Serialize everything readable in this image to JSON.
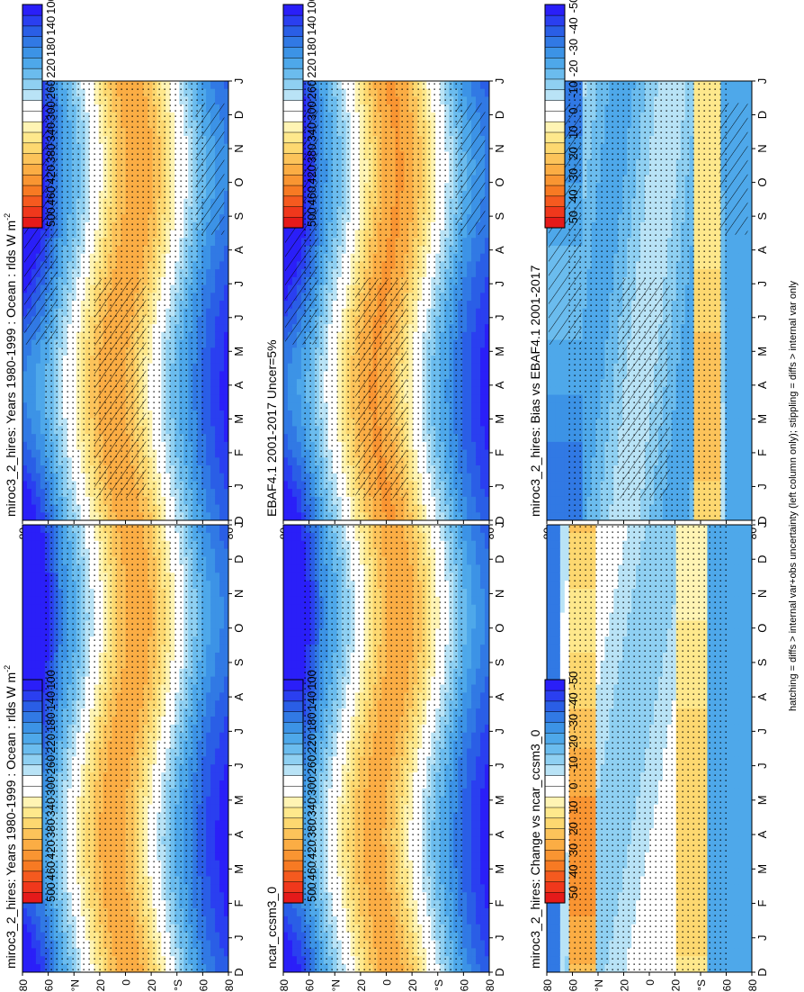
{
  "footnote": "hatching = diffs > internal var+obs uncertainty (left column only); stippling = diffs > internal var only",
  "palettes": {
    "abs": [
      "#e51a1a",
      "#f0381c",
      "#f55a1f",
      "#f77a23",
      "#f99532",
      "#fbad44",
      "#fcc35a",
      "#fdd870",
      "#fee88c",
      "#fff4b4",
      "#ffffff",
      "#ffffff",
      "#b9e3f6",
      "#8fd0f2",
      "#6bbcee",
      "#4ea8ea",
      "#3c93e6",
      "#3179e4",
      "#2a5ee6",
      "#2a3ff0",
      "#2a1ff8"
    ],
    "diff": [
      "#e51a1a",
      "#f0381c",
      "#f55a1f",
      "#f77a23",
      "#f99532",
      "#fbad44",
      "#fcc35a",
      "#fdd870",
      "#fee88c",
      "#fff4b4",
      "#ffffff",
      "#ffffff",
      "#b9e3f6",
      "#8fd0f2",
      "#6bbcee",
      "#4ea8ea",
      "#3c93e6",
      "#3179e4",
      "#2a5ee6",
      "#2a3ff0",
      "#2a1ff8"
    ]
  },
  "colorbars": [
    {
      "id": "cb-top-left",
      "labels": [
        "500",
        "460",
        "420",
        "380",
        "340",
        "300",
        "260",
        "220",
        "180",
        "140",
        "100"
      ]
    },
    {
      "id": "cb-top-right",
      "labels": [
        "500",
        "460",
        "420",
        "380",
        "340",
        "300",
        "260",
        "220",
        "180",
        "140",
        "100"
      ]
    },
    {
      "id": "cb-mid-left",
      "labels": [
        "500",
        "460",
        "420",
        "380",
        "340",
        "300",
        "260",
        "220",
        "180",
        "140",
        "100"
      ]
    },
    {
      "id": "cb-mid-right",
      "labels": [
        "500",
        "460",
        "420",
        "380",
        "340",
        "300",
        "260",
        "220",
        "180",
        "140",
        "100"
      ]
    },
    {
      "id": "cb-bot-left",
      "labels": [
        "50",
        "40",
        "30",
        "20",
        "10",
        "0",
        "-10",
        "-20",
        "-30",
        "-40",
        "-50"
      ]
    },
    {
      "id": "cb-bot-right",
      "labels": [
        "50",
        "40",
        "30",
        "20",
        "10",
        "0",
        "-10",
        "-20",
        "-30",
        "-40",
        "-50"
      ]
    }
  ],
  "chart_data": [
    {
      "id": "p1",
      "type": "heatmap",
      "title": "miroc3_2_hires: Years 1980-1999 : Ocean : rlds W m",
      "title_superscript": "-2",
      "months": [
        "D",
        "J",
        "F",
        "M",
        "A",
        "M",
        "J",
        "J",
        "A",
        "S",
        "O",
        "N",
        "D",
        "J"
      ],
      "lat_ticks": [
        "80",
        "60",
        "°N",
        "20",
        "0",
        "20",
        "°S",
        "60",
        "80"
      ],
      "palette": "abs",
      "range": [
        80,
        520
      ],
      "hatching": true,
      "stippling": true
    },
    {
      "id": "p2",
      "type": "heatmap",
      "title": "miroc3_2_hires: Years 1980-1999 : Ocean : rlds W m",
      "title_superscript": "-2",
      "months": [
        "D",
        "J",
        "F",
        "M",
        "A",
        "M",
        "J",
        "J",
        "A",
        "S",
        "O",
        "N",
        "D",
        "J"
      ],
      "lat_ticks": [
        "80",
        "60",
        "°N",
        "20",
        "0",
        "20",
        "°S",
        "60",
        "80"
      ],
      "palette": "abs",
      "range": [
        80,
        520
      ],
      "hatching": false,
      "stippling": true
    },
    {
      "id": "p3",
      "type": "heatmap",
      "title": "EBAF4.1 2001-2017 Uncer=5%",
      "title_superscript": "",
      "months": [
        "D",
        "J",
        "F",
        "M",
        "A",
        "M",
        "J",
        "J",
        "A",
        "S",
        "O",
        "N",
        "D",
        "J"
      ],
      "lat_ticks": [
        "80",
        "60",
        "°N",
        "20",
        "0",
        "20",
        "°S",
        "60",
        "80"
      ],
      "palette": "abs",
      "range": [
        80,
        520
      ],
      "hatching": true,
      "stippling": true
    },
    {
      "id": "p4",
      "type": "heatmap",
      "title": "ncar_ccsm3_0",
      "title_superscript": "",
      "months": [
        "D",
        "J",
        "F",
        "M",
        "A",
        "M",
        "J",
        "J",
        "A",
        "S",
        "O",
        "N",
        "D",
        "J"
      ],
      "lat_ticks": [
        "80",
        "60",
        "°N",
        "20",
        "0",
        "20",
        "°S",
        "60",
        "80"
      ],
      "palette": "abs",
      "range": [
        80,
        520
      ],
      "hatching": false,
      "stippling": true
    },
    {
      "id": "p5",
      "type": "heatmap",
      "title": "miroc3_2_hires: Bias vs EBAF4.1 2001-2017",
      "title_superscript": "",
      "months": [
        "D",
        "J",
        "F",
        "M",
        "A",
        "M",
        "J",
        "J",
        "A",
        "S",
        "O",
        "N",
        "D",
        "J"
      ],
      "lat_ticks": [
        "80",
        "60",
        "°N",
        "20",
        "0",
        "20",
        "°S",
        "60",
        "80"
      ],
      "palette": "diff",
      "range": [
        -55,
        55
      ],
      "hatching": true,
      "stippling": true
    },
    {
      "id": "p6",
      "type": "heatmap",
      "title": "miroc3_2_hires: Change vs ncar_ccsm3_0",
      "title_superscript": "",
      "months": [
        "D",
        "J",
        "F",
        "M",
        "A",
        "M",
        "J",
        "J",
        "A",
        "S",
        "O",
        "N",
        "D",
        "J"
      ],
      "lat_ticks": [
        "80",
        "60",
        "°N",
        "20",
        "0",
        "20",
        "°S",
        "60",
        "80"
      ],
      "palette": "diff",
      "range": [
        -55,
        55
      ],
      "hatching": false,
      "stippling": true
    }
  ]
}
